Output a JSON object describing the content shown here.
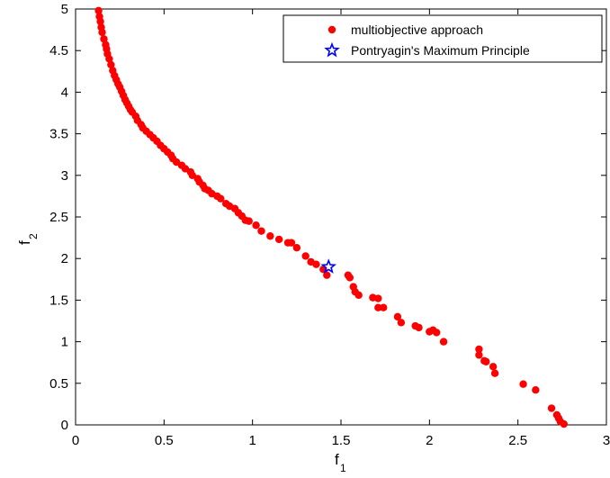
{
  "chart_data": {
    "type": "scatter",
    "xlabel": "f",
    "xlabel_subscript": "1",
    "ylabel": "f",
    "ylabel_subscript": "2",
    "xlim": [
      0,
      3
    ],
    "ylim": [
      0,
      5
    ],
    "xticks": [
      0,
      0.5,
      1,
      1.5,
      2,
      2.5,
      3
    ],
    "xtick_labels": [
      "0",
      "0.5",
      "1",
      "1.5",
      "2",
      "2.5",
      "3"
    ],
    "yticks": [
      0,
      0.5,
      1,
      1.5,
      2,
      2.5,
      3,
      3.5,
      4,
      4.5,
      5
    ],
    "ytick_labels": [
      "0",
      "0.5",
      "1",
      "1.5",
      "2",
      "2.5",
      "3",
      "3.5",
      "4",
      "4.5",
      "5"
    ],
    "grid": false,
    "legend_position": "top-right",
    "series": [
      {
        "name": "multiobjective approach",
        "marker": "circle",
        "color": "#ff0000",
        "points": [
          [
            0.13,
            4.98
          ],
          [
            0.135,
            4.91
          ],
          [
            0.14,
            4.85
          ],
          [
            0.145,
            4.78
          ],
          [
            0.15,
            4.72
          ],
          [
            0.16,
            4.64
          ],
          [
            0.17,
            4.57
          ],
          [
            0.175,
            4.52
          ],
          [
            0.18,
            4.46
          ],
          [
            0.19,
            4.4
          ],
          [
            0.2,
            4.33
          ],
          [
            0.21,
            4.26
          ],
          [
            0.22,
            4.2
          ],
          [
            0.23,
            4.15
          ],
          [
            0.24,
            4.1
          ],
          [
            0.25,
            4.06
          ],
          [
            0.26,
            4.01
          ],
          [
            0.27,
            3.96
          ],
          [
            0.28,
            3.91
          ],
          [
            0.29,
            3.87
          ],
          [
            0.3,
            3.83
          ],
          [
            0.31,
            3.79
          ],
          [
            0.32,
            3.76
          ],
          [
            0.34,
            3.71
          ],
          [
            0.35,
            3.66
          ],
          [
            0.37,
            3.61
          ],
          [
            0.38,
            3.57
          ],
          [
            0.4,
            3.53
          ],
          [
            0.42,
            3.49
          ],
          [
            0.44,
            3.45
          ],
          [
            0.46,
            3.41
          ],
          [
            0.48,
            3.36
          ],
          [
            0.5,
            3.32
          ],
          [
            0.52,
            3.28
          ],
          [
            0.54,
            3.24
          ],
          [
            0.55,
            3.2
          ],
          [
            0.57,
            3.16
          ],
          [
            0.6,
            3.12
          ],
          [
            0.62,
            3.08
          ],
          [
            0.65,
            3.04
          ],
          [
            0.66,
            3.0
          ],
          [
            0.69,
            2.96
          ],
          [
            0.7,
            2.92
          ],
          [
            0.72,
            2.88
          ],
          [
            0.73,
            2.84
          ],
          [
            0.75,
            2.82
          ],
          [
            0.77,
            2.78
          ],
          [
            0.8,
            2.75
          ],
          [
            0.82,
            2.72
          ],
          [
            0.85,
            2.66
          ],
          [
            0.87,
            2.63
          ],
          [
            0.9,
            2.6
          ],
          [
            0.92,
            2.55
          ],
          [
            0.94,
            2.51
          ],
          [
            0.96,
            2.46
          ],
          [
            0.98,
            2.45
          ],
          [
            1.02,
            2.4
          ],
          [
            1.05,
            2.33
          ],
          [
            1.1,
            2.27
          ],
          [
            1.15,
            2.23
          ],
          [
            1.2,
            2.19
          ],
          [
            1.22,
            2.19
          ],
          [
            1.25,
            2.13
          ],
          [
            1.3,
            2.03
          ],
          [
            1.33,
            1.96
          ],
          [
            1.36,
            1.93
          ],
          [
            1.4,
            1.87
          ],
          [
            1.42,
            1.8
          ],
          [
            1.54,
            1.8
          ],
          [
            1.55,
            1.77
          ],
          [
            1.57,
            1.66
          ],
          [
            1.58,
            1.6
          ],
          [
            1.6,
            1.56
          ],
          [
            1.68,
            1.53
          ],
          [
            1.71,
            1.52
          ],
          [
            1.71,
            1.41
          ],
          [
            1.74,
            1.41
          ],
          [
            1.82,
            1.3
          ],
          [
            1.84,
            1.23
          ],
          [
            1.92,
            1.19
          ],
          [
            1.94,
            1.17
          ],
          [
            2.0,
            1.12
          ],
          [
            2.02,
            1.14
          ],
          [
            2.04,
            1.11
          ],
          [
            2.08,
            1.0
          ],
          [
            2.28,
            0.91
          ],
          [
            2.28,
            0.84
          ],
          [
            2.31,
            0.77
          ],
          [
            2.32,
            0.76
          ],
          [
            2.36,
            0.7
          ],
          [
            2.37,
            0.62
          ],
          [
            2.53,
            0.49
          ],
          [
            2.6,
            0.42
          ],
          [
            2.69,
            0.2
          ],
          [
            2.72,
            0.12
          ],
          [
            2.73,
            0.08
          ],
          [
            2.74,
            0.04
          ],
          [
            2.76,
            0.01
          ]
        ]
      },
      {
        "name": "Pontryagin's Maximum Principle",
        "marker": "star",
        "color": "#0000ff",
        "points": [
          [
            1.43,
            1.9
          ]
        ]
      }
    ]
  }
}
